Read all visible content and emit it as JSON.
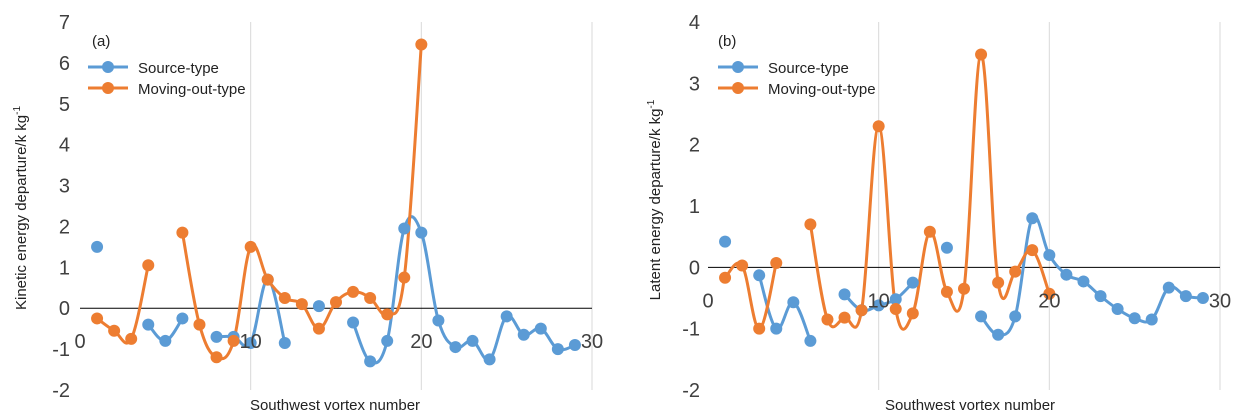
{
  "colors": {
    "source": "#5b9bd5",
    "moving": "#ed7d31",
    "grid": "#d9d9d9",
    "zero": "#000000"
  },
  "chart_data": [
    {
      "type": "line",
      "panel_label": "(a)",
      "xlabel": "Southwest vortex number",
      "ylabel": "Kinetic energy departure/k kg",
      "ylabel_sup": "-1",
      "xlim": [
        0,
        30
      ],
      "ylim": [
        -2,
        7
      ],
      "xticks": [
        "0",
        "10",
        "20",
        "30"
      ],
      "yticks": [
        "-2",
        "-1",
        "0",
        "1",
        "2",
        "3",
        "4",
        "5",
        "6",
        "7"
      ],
      "grid": "vertical",
      "legend": "top-left",
      "series": [
        {
          "name": "Source-type",
          "color_key": "source",
          "x": [
            1,
            4,
            5,
            6,
            8,
            9,
            10,
            11,
            12,
            14,
            16,
            17,
            18,
            19,
            20,
            21,
            22,
            23,
            24,
            25,
            26,
            27,
            28,
            29
          ],
          "y": [
            1.5,
            -0.4,
            -0.8,
            -0.25,
            -0.7,
            -0.7,
            -0.85,
            0.7,
            -0.85,
            0.05,
            -0.35,
            -1.3,
            -0.8,
            1.95,
            1.85,
            -0.3,
            -0.95,
            -0.8,
            -1.25,
            -0.2,
            -0.65,
            -0.5,
            -1.0,
            -0.9
          ]
        },
        {
          "name": "Moving-out-type",
          "color_key": "moving",
          "x": [
            1,
            2,
            3,
            4,
            6,
            7,
            8,
            9,
            10,
            11,
            12,
            13,
            14,
            15,
            16,
            17,
            18,
            19,
            20
          ],
          "y": [
            -0.25,
            -0.55,
            -0.75,
            1.05,
            1.85,
            -0.4,
            -1.2,
            -0.8,
            1.5,
            0.7,
            0.25,
            0.1,
            -0.5,
            0.15,
            0.4,
            0.25,
            -0.15,
            0.75,
            6.45
          ]
        }
      ]
    },
    {
      "type": "line",
      "panel_label": "(b)",
      "xlabel": "Southwest vortex number",
      "ylabel": "Latent energy departure/k kg",
      "ylabel_sup": "-1",
      "xlim": [
        0,
        30
      ],
      "ylim": [
        -2,
        4
      ],
      "xticks": [
        "0",
        "10",
        "20",
        "30"
      ],
      "yticks": [
        "-2",
        "-1",
        "0",
        "1",
        "2",
        "3",
        "4"
      ],
      "grid": "vertical",
      "legend": "top-left",
      "series": [
        {
          "name": "Source-type",
          "color_key": "source",
          "x": [
            1,
            3,
            4,
            5,
            6,
            8,
            9,
            10,
            11,
            12,
            14,
            16,
            17,
            18,
            19,
            20,
            21,
            22,
            23,
            24,
            25,
            26,
            27,
            28,
            29
          ],
          "y": [
            0.42,
            -0.13,
            -1.0,
            -0.57,
            -1.2,
            -0.44,
            -0.7,
            -0.62,
            -0.52,
            -0.25,
            0.32,
            -0.8,
            -1.1,
            -0.8,
            0.8,
            0.2,
            -0.12,
            -0.23,
            -0.47,
            -0.68,
            -0.83,
            -0.85,
            -0.33,
            -0.47,
            -0.5
          ]
        },
        {
          "name": "Moving-out-type",
          "color_key": "moving",
          "x": [
            1,
            2,
            3,
            4,
            6,
            7,
            8,
            9,
            10,
            11,
            12,
            13,
            14,
            15,
            16,
            17,
            18,
            19,
            20
          ],
          "y": [
            -0.17,
            0.03,
            -1.0,
            0.07,
            0.7,
            -0.85,
            -0.82,
            -0.7,
            2.3,
            -0.68,
            -0.75,
            0.58,
            -0.4,
            -0.35,
            3.47,
            -0.25,
            -0.07,
            0.28,
            -0.43
          ]
        }
      ]
    }
  ]
}
